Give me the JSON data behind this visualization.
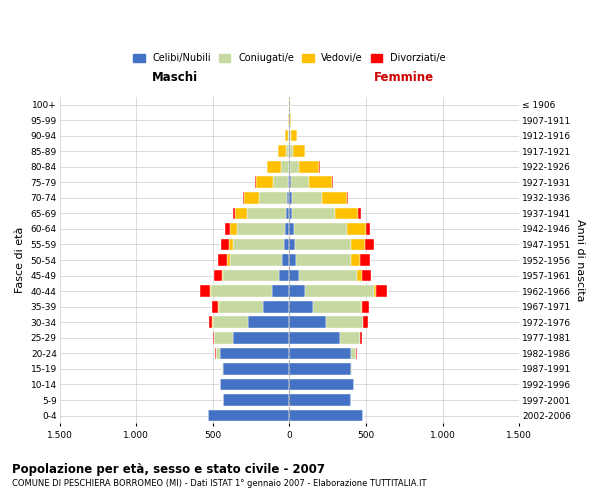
{
  "age_groups": [
    "0-4",
    "5-9",
    "10-14",
    "15-19",
    "20-24",
    "25-29",
    "30-34",
    "35-39",
    "40-44",
    "45-49",
    "50-54",
    "55-59",
    "60-64",
    "65-69",
    "70-74",
    "75-79",
    "80-84",
    "85-89",
    "90-94",
    "95-99",
    "100+"
  ],
  "birth_years": [
    "2002-2006",
    "1997-2001",
    "1992-1996",
    "1987-1991",
    "1982-1986",
    "1977-1981",
    "1972-1976",
    "1967-1971",
    "1962-1966",
    "1957-1961",
    "1952-1956",
    "1947-1951",
    "1942-1946",
    "1937-1941",
    "1932-1936",
    "1927-1931",
    "1922-1926",
    "1917-1921",
    "1912-1916",
    "1907-1911",
    "≤ 1906"
  ],
  "male_celibe": [
    530,
    430,
    450,
    430,
    450,
    370,
    270,
    170,
    110,
    70,
    50,
    35,
    30,
    25,
    15,
    8,
    5,
    3,
    2,
    2,
    0
  ],
  "male_coniugato": [
    0,
    2,
    5,
    10,
    30,
    120,
    230,
    290,
    400,
    360,
    340,
    330,
    310,
    250,
    180,
    100,
    50,
    18,
    8,
    3,
    0
  ],
  "male_vedovo": [
    0,
    0,
    0,
    0,
    0,
    1,
    2,
    3,
    5,
    10,
    15,
    30,
    50,
    80,
    100,
    110,
    90,
    50,
    20,
    5,
    0
  ],
  "male_divorziato": [
    0,
    0,
    0,
    1,
    3,
    10,
    25,
    40,
    70,
    55,
    60,
    50,
    30,
    15,
    8,
    3,
    2,
    1,
    0,
    0,
    0
  ],
  "female_celibe": [
    480,
    400,
    420,
    400,
    400,
    330,
    240,
    155,
    100,
    65,
    45,
    35,
    28,
    20,
    15,
    8,
    5,
    3,
    2,
    2,
    0
  ],
  "female_coniugata": [
    0,
    2,
    5,
    10,
    35,
    130,
    240,
    310,
    450,
    380,
    360,
    370,
    350,
    280,
    200,
    120,
    60,
    20,
    8,
    2,
    0
  ],
  "female_vedova": [
    0,
    0,
    0,
    0,
    1,
    2,
    4,
    8,
    15,
    30,
    55,
    90,
    120,
    150,
    160,
    150,
    130,
    80,
    40,
    10,
    2
  ],
  "female_divorziata": [
    0,
    0,
    0,
    1,
    4,
    12,
    28,
    45,
    75,
    60,
    65,
    55,
    30,
    15,
    8,
    5,
    3,
    2,
    1,
    0,
    0
  ],
  "color_celibe": "#4472C4",
  "color_coniugato": "#C6D9A0",
  "color_vedovo": "#FFC000",
  "color_divorziato": "#FF0000",
  "xlim": 1500,
  "title": "Popolazione per età, sesso e stato civile - 2007",
  "subtitle": "COMUNE DI PESCHIERA BORROMEO (MI) - Dati ISTAT 1° gennaio 2007 - Elaborazione TUTTITALIA.IT",
  "xlabel_maschi": "Maschi",
  "xlabel_femmine": "Femmine",
  "ylabel": "Fasce di età",
  "ylabel_right": "Anni di nascita",
  "legend_labels": [
    "Celibi/Nubili",
    "Coniugati/e",
    "Vedovi/e",
    "Divorziati/e"
  ],
  "xticks": [
    -1500,
    -1000,
    -500,
    0,
    500,
    1000,
    1500
  ],
  "xtick_labels": [
    "1.500",
    "1.000",
    "500",
    "0",
    "500",
    "1.000",
    "1.500"
  ]
}
